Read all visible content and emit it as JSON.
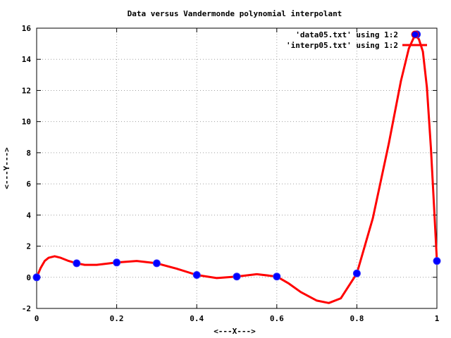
{
  "chart_data": {
    "type": "line",
    "title": "Data versus Vandermonde polynomial interpolant",
    "xlabel": "<---X--->",
    "ylabel": "<---Y--->",
    "xlim": [
      0,
      1
    ],
    "ylim": [
      -2,
      16
    ],
    "xticks": [
      "0",
      "0.2",
      "0.4",
      "0.6",
      "0.8",
      "1"
    ],
    "yticks": [
      "-2",
      "0",
      "2",
      "4",
      "6",
      "8",
      "10",
      "12",
      "14",
      "16"
    ],
    "grid": true,
    "legend_position": "top-right",
    "series": [
      {
        "name": "'data05.txt' using 1:2",
        "style": "points",
        "color": "#0000ff",
        "x": [
          0.0,
          0.1,
          0.2,
          0.3,
          0.4,
          0.5,
          0.6,
          0.8,
          0.95,
          1.0
        ],
        "y": [
          0.0,
          0.9,
          0.95,
          0.9,
          0.15,
          0.05,
          0.05,
          0.25,
          15.6,
          1.05
        ]
      },
      {
        "name": "'interp05.txt' using 1:2",
        "style": "line",
        "color": "#ff0000",
        "x": [
          0.0,
          0.01,
          0.02,
          0.03,
          0.045,
          0.06,
          0.08,
          0.1,
          0.12,
          0.15,
          0.2,
          0.25,
          0.3,
          0.35,
          0.4,
          0.45,
          0.5,
          0.55,
          0.6,
          0.63,
          0.66,
          0.7,
          0.73,
          0.76,
          0.8,
          0.84,
          0.88,
          0.91,
          0.93,
          0.945,
          0.955,
          0.965,
          0.975,
          0.985,
          0.993,
          1.0
        ],
        "y": [
          0.0,
          0.6,
          1.05,
          1.25,
          1.35,
          1.25,
          1.05,
          0.9,
          0.8,
          0.8,
          0.95,
          1.05,
          0.9,
          0.55,
          0.15,
          -0.05,
          0.05,
          0.2,
          0.05,
          -0.4,
          -0.95,
          -1.5,
          -1.65,
          -1.35,
          0.25,
          3.8,
          8.6,
          12.6,
          14.7,
          15.55,
          15.3,
          14.5,
          12.2,
          8.3,
          4.5,
          1.05
        ]
      }
    ]
  }
}
